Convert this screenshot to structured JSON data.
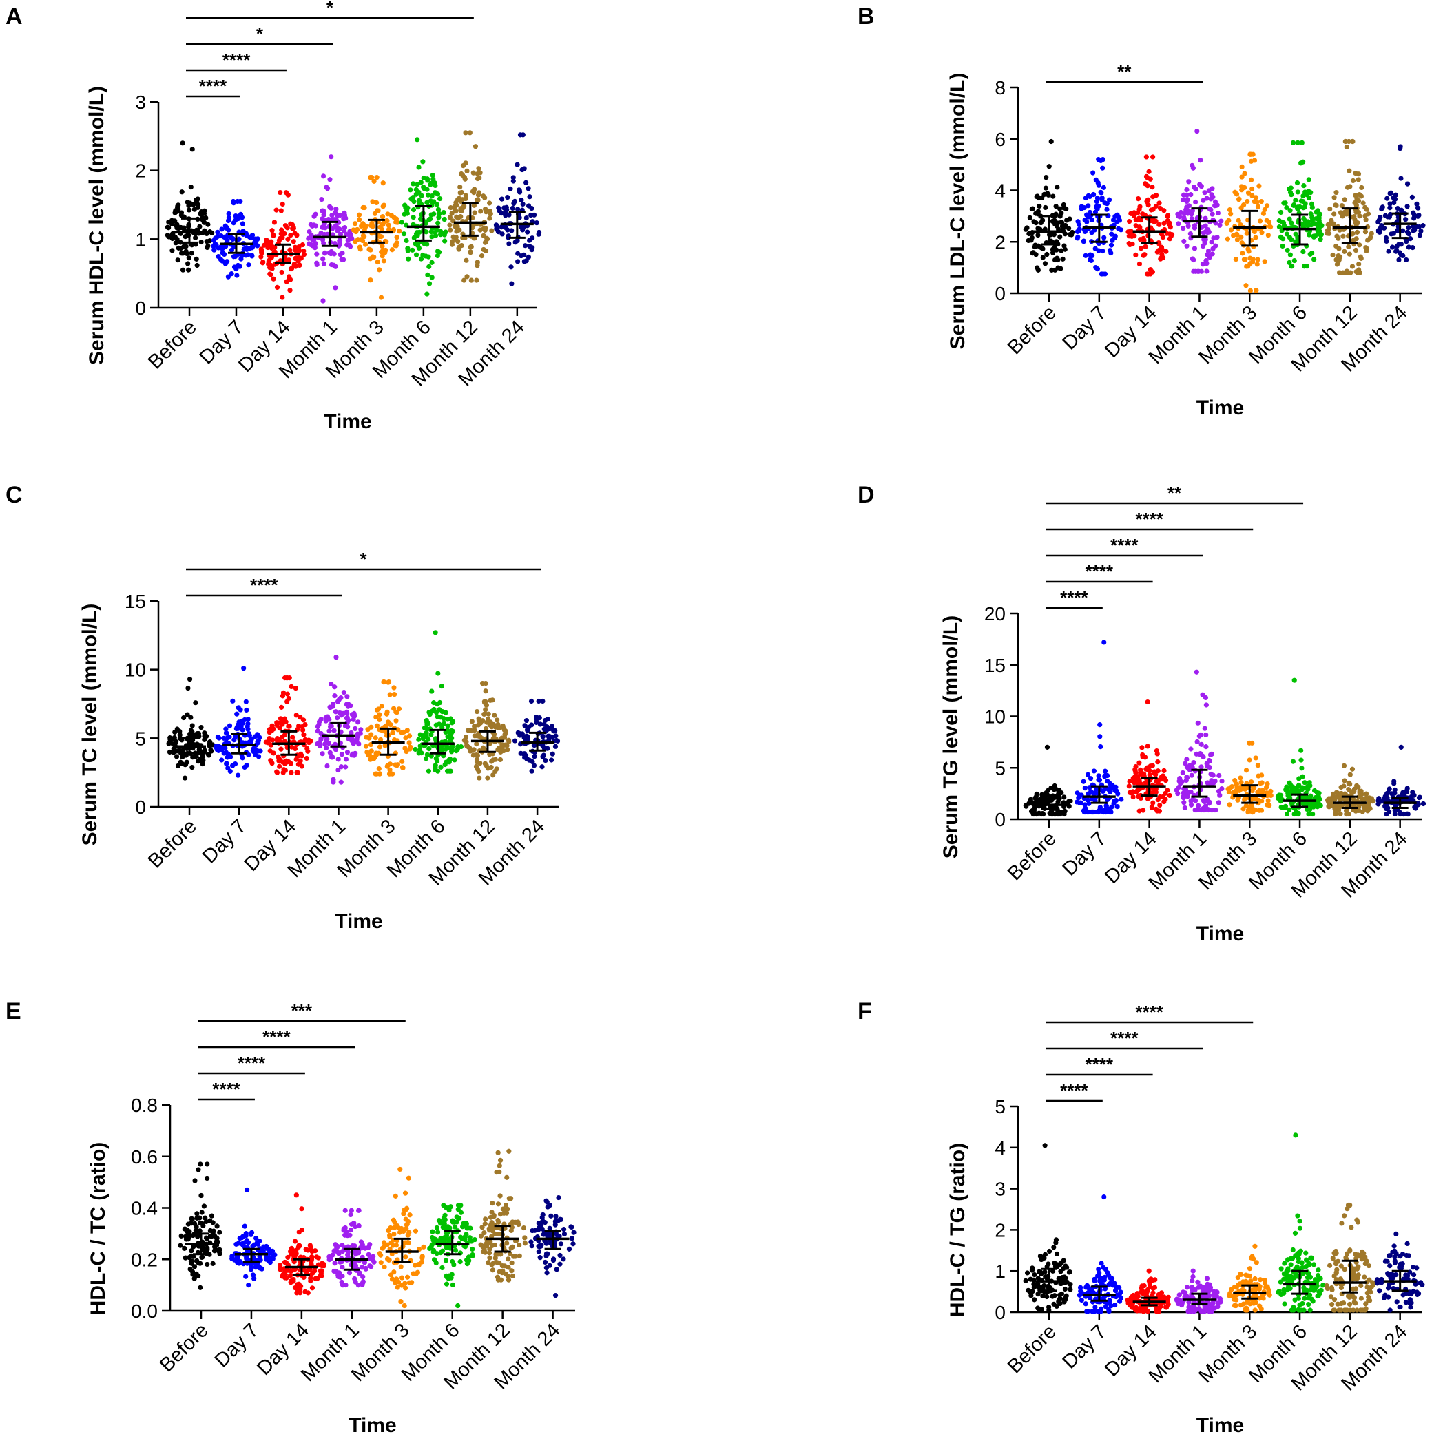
{
  "chart_data": [
    {
      "panel": "A",
      "type": "scatter",
      "ylabel": "Serum HDL-C level (mmol/L)",
      "xlabel": "Time",
      "ylim": [
        0,
        3
      ],
      "yticks": [
        0,
        1,
        2,
        3
      ],
      "categories": [
        "Before",
        "Day 7",
        "Day 14",
        "Month 1",
        "Month 3",
        "Month 6",
        "Month 12",
        "Month 24"
      ],
      "colors": [
        "#000000",
        "#0000ff",
        "#ff0000",
        "#a020f0",
        "#ff8c00",
        "#00c000",
        "#a0782a",
        "#000080"
      ],
      "median": [
        1.1,
        0.93,
        0.78,
        1.03,
        1.1,
        1.18,
        1.24,
        1.22
      ],
      "q1": [
        0.95,
        0.8,
        0.65,
        0.9,
        0.95,
        0.98,
        1.05,
        1.02
      ],
      "q3": [
        1.3,
        1.07,
        0.92,
        1.25,
        1.28,
        1.48,
        1.52,
        1.4
      ],
      "min": [
        0.55,
        0.45,
        0.15,
        0.1,
        0.15,
        0.2,
        0.4,
        0.35
      ],
      "max": [
        2.4,
        1.55,
        1.68,
        2.2,
        1.9,
        2.45,
        2.55,
        2.52
      ],
      "n": [
        110,
        100,
        110,
        110,
        90,
        120,
        120,
        85
      ],
      "comparisons": [
        {
          "from": 0,
          "to": 1,
          "label": "****"
        },
        {
          "from": 0,
          "to": 2,
          "label": "****"
        },
        {
          "from": 0,
          "to": 3,
          "label": "*"
        },
        {
          "from": 0,
          "to": 6,
          "label": "*"
        }
      ]
    },
    {
      "panel": "B",
      "type": "scatter",
      "ylabel": "Serum LDL-C level (mmol/L)",
      "xlabel": "Time",
      "ylim": [
        0,
        8
      ],
      "yticks": [
        0,
        2,
        4,
        6,
        8
      ],
      "categories": [
        "Before",
        "Day 7",
        "Day 14",
        "Month 1",
        "Month 3",
        "Month 6",
        "Month 12",
        "Month 24"
      ],
      "colors": [
        "#000000",
        "#0000ff",
        "#ff0000",
        "#a020f0",
        "#ff8c00",
        "#00c000",
        "#a0782a",
        "#000080"
      ],
      "median": [
        2.4,
        2.55,
        2.4,
        2.8,
        2.55,
        2.5,
        2.55,
        2.7
      ],
      "q1": [
        1.9,
        2.0,
        1.95,
        2.2,
        1.85,
        1.9,
        1.95,
        2.15
      ],
      "q3": [
        3.0,
        3.05,
        2.95,
        3.3,
        3.2,
        3.05,
        3.3,
        3.1
      ],
      "min": [
        0.9,
        0.75,
        0.75,
        0.85,
        0.1,
        1.05,
        0.8,
        1.3
      ],
      "max": [
        5.9,
        5.2,
        5.3,
        6.3,
        5.4,
        5.85,
        5.9,
        5.7
      ],
      "n": [
        110,
        100,
        110,
        110,
        90,
        120,
        120,
        85
      ],
      "comparisons": [
        {
          "from": 0,
          "to": 3,
          "label": "**"
        }
      ]
    },
    {
      "panel": "C",
      "type": "scatter",
      "ylabel": "Serum TC level (mmol/L)",
      "xlabel": "Time",
      "ylim": [
        0,
        15
      ],
      "yticks": [
        0,
        5,
        10,
        15
      ],
      "categories": [
        "Before",
        "Day 7",
        "Day 14",
        "Month 1",
        "Month 3",
        "Month 6",
        "Month 12",
        "Month 24"
      ],
      "colors": [
        "#000000",
        "#0000ff",
        "#ff0000",
        "#a020f0",
        "#ff8c00",
        "#00c000",
        "#a0782a",
        "#000080"
      ],
      "median": [
        4.4,
        4.5,
        4.6,
        5.2,
        4.7,
        4.6,
        4.8,
        4.7
      ],
      "q1": [
        3.9,
        3.9,
        3.8,
        4.4,
        3.8,
        3.9,
        4.0,
        4.1
      ],
      "q3": [
        5.0,
        5.3,
        5.5,
        6.1,
        5.7,
        5.6,
        5.5,
        5.4
      ],
      "min": [
        2.1,
        2.3,
        2.5,
        1.8,
        2.4,
        2.6,
        2.1,
        2.6
      ],
      "max": [
        9.3,
        10.1,
        9.4,
        10.9,
        9.1,
        12.7,
        9.0,
        7.7
      ],
      "n": [
        110,
        100,
        110,
        110,
        90,
        120,
        120,
        85
      ],
      "comparisons": [
        {
          "from": 0,
          "to": 3,
          "label": "****"
        },
        {
          "from": 0,
          "to": 7,
          "label": "*"
        }
      ]
    },
    {
      "panel": "D",
      "type": "scatter",
      "ylabel": "Serum TG level (mmol/L)",
      "xlabel": "Time",
      "ylim": [
        0,
        20
      ],
      "yticks": [
        0,
        5,
        10,
        15,
        20
      ],
      "categories": [
        "Before",
        "Day 7",
        "Day 14",
        "Month 1",
        "Month 3",
        "Month 6",
        "Month 12",
        "Month 24"
      ],
      "colors": [
        "#000000",
        "#0000ff",
        "#ff0000",
        "#a020f0",
        "#ff8c00",
        "#00c000",
        "#a0782a",
        "#000080"
      ],
      "median": [
        1.4,
        2.2,
        3.2,
        3.2,
        2.3,
        1.8,
        1.6,
        1.6
      ],
      "q1": [
        1.0,
        1.6,
        2.3,
        2.2,
        1.6,
        1.2,
        1.1,
        1.1
      ],
      "q3": [
        2.0,
        3.2,
        4.0,
        4.8,
        3.3,
        2.4,
        2.2,
        2.1
      ],
      "min": [
        0.5,
        0.7,
        0.8,
        0.9,
        0.7,
        0.5,
        0.5,
        0.5
      ],
      "max": [
        7.0,
        17.2,
        11.4,
        14.3,
        7.4,
        13.5,
        5.2,
        7.0
      ],
      "n": [
        110,
        100,
        110,
        110,
        90,
        120,
        120,
        85
      ],
      "comparisons": [
        {
          "from": 0,
          "to": 1,
          "label": "****"
        },
        {
          "from": 0,
          "to": 2,
          "label": "****"
        },
        {
          "from": 0,
          "to": 3,
          "label": "****"
        },
        {
          "from": 0,
          "to": 4,
          "label": "****"
        },
        {
          "from": 0,
          "to": 5,
          "label": "**"
        }
      ]
    },
    {
      "panel": "E",
      "type": "scatter",
      "ylabel": "HDL-C / TC (ratio)",
      "xlabel": "Time",
      "ylim": [
        0,
        0.8
      ],
      "yticks": [
        0.0,
        0.2,
        0.4,
        0.6,
        0.8
      ],
      "ytick_labels": [
        "0.0",
        "0.2",
        "0.4",
        "0.6",
        "0.8"
      ],
      "categories": [
        "Before",
        "Day 7",
        "Day 14",
        "Month 1",
        "Month 3",
        "Month 6",
        "Month 12",
        "Month 24"
      ],
      "colors": [
        "#000000",
        "#0000ff",
        "#ff0000",
        "#a020f0",
        "#ff8c00",
        "#00c000",
        "#a0782a",
        "#000080"
      ],
      "median": [
        0.26,
        0.22,
        0.17,
        0.2,
        0.23,
        0.26,
        0.28,
        0.28
      ],
      "q1": [
        0.22,
        0.19,
        0.14,
        0.16,
        0.19,
        0.22,
        0.23,
        0.24
      ],
      "q3": [
        0.3,
        0.24,
        0.2,
        0.24,
        0.28,
        0.31,
        0.33,
        0.31
      ],
      "min": [
        0.09,
        0.1,
        0.07,
        0.1,
        0.02,
        0.02,
        0.12,
        0.06
      ],
      "max": [
        0.57,
        0.47,
        0.45,
        0.39,
        0.55,
        0.41,
        0.62,
        0.44
      ],
      "n": [
        110,
        100,
        110,
        110,
        90,
        120,
        120,
        85
      ],
      "comparisons": [
        {
          "from": 0,
          "to": 1,
          "label": "****"
        },
        {
          "from": 0,
          "to": 2,
          "label": "****"
        },
        {
          "from": 0,
          "to": 3,
          "label": "****"
        },
        {
          "from": 0,
          "to": 4,
          "label": "***"
        }
      ]
    },
    {
      "panel": "F",
      "type": "scatter",
      "ylabel": "HDL-C / TG (ratio)",
      "xlabel": "Time",
      "ylim": [
        0,
        5
      ],
      "yticks": [
        0,
        1,
        2,
        3,
        4,
        5
      ],
      "categories": [
        "Before",
        "Day 7",
        "Day 14",
        "Month 1",
        "Month 3",
        "Month 6",
        "Month 12",
        "Month 24"
      ],
      "colors": [
        "#000000",
        "#0000ff",
        "#ff0000",
        "#a020f0",
        "#ff8c00",
        "#00c000",
        "#a0782a",
        "#000080"
      ],
      "median": [
        0.75,
        0.42,
        0.25,
        0.3,
        0.47,
        0.68,
        0.72,
        0.75
      ],
      "q1": [
        0.52,
        0.28,
        0.17,
        0.2,
        0.33,
        0.45,
        0.48,
        0.52
      ],
      "q3": [
        1.05,
        0.62,
        0.35,
        0.45,
        0.65,
        1.0,
        1.25,
        1.0
      ],
      "min": [
        0.05,
        0.02,
        0.02,
        0.02,
        0.05,
        0.05,
        0.05,
        0.05
      ],
      "max": [
        4.05,
        2.8,
        1.0,
        1.0,
        1.6,
        4.3,
        2.6,
        1.9
      ],
      "n": [
        110,
        100,
        110,
        110,
        90,
        120,
        120,
        85
      ],
      "comparisons": [
        {
          "from": 0,
          "to": 1,
          "label": "****"
        },
        {
          "from": 0,
          "to": 2,
          "label": "****"
        },
        {
          "from": 0,
          "to": 3,
          "label": "****"
        },
        {
          "from": 0,
          "to": 4,
          "label": "****"
        }
      ]
    }
  ]
}
